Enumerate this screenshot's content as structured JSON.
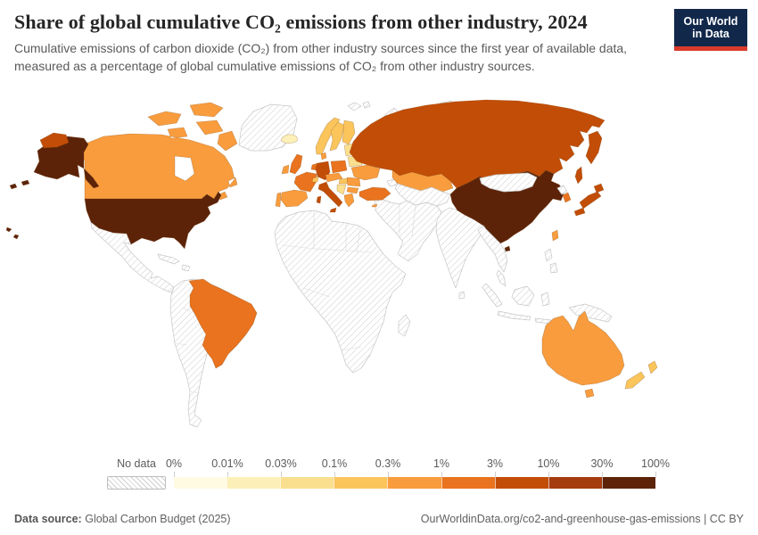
{
  "header": {
    "title": "Share of global cumulative CO₂ emissions from other industry, 2024",
    "subtitle": "Cumulative emissions of carbon dioxide (CO₂) from other industry sources since the first year of available data, measured as a percentage of global cumulative emissions of CO₂ from other industry sources.",
    "logo_line1": "Our World",
    "logo_line2": "in Data",
    "logo_bg": "#12284B",
    "logo_accent": "#D93A2B"
  },
  "legend": {
    "no_data_label": "No data",
    "tick_labels": [
      "0%",
      "0.01%",
      "0.03%",
      "0.1%",
      "0.3%",
      "1%",
      "3%",
      "10%",
      "30%",
      "100%"
    ],
    "bins": [
      {
        "range": "0–0.01%",
        "color": "#FFFBE3"
      },
      {
        "range": "0.01–0.03%",
        "color": "#FCF0B8"
      },
      {
        "range": "0.03–0.1%",
        "color": "#FADF8E"
      },
      {
        "range": "0.1–0.3%",
        "color": "#FBC55C"
      },
      {
        "range": "0.3–1%",
        "color": "#F99C3D"
      },
      {
        "range": "1–3%",
        "color": "#E9731E"
      },
      {
        "range": "3–10%",
        "color": "#C24D06"
      },
      {
        "range": "10–30%",
        "color": "#A53C0E"
      },
      {
        "range": "30–100%",
        "color": "#5C2309"
      }
    ]
  },
  "footer": {
    "source_label": "Data source:",
    "source_value": "Global Carbon Budget (2025)",
    "credit": "OurWorldinData.org/co2-and-greenhouse-gas-emissions | CC BY"
  },
  "chart_data": {
    "type": "choropleth_world_map",
    "title": "Share of global cumulative CO₂ emissions from other industry, 2024",
    "year": 2024,
    "unit": "%",
    "scale_type": "log-binned color scale",
    "tick_labels": [
      "0%",
      "0.01%",
      "0.03%",
      "0.1%",
      "0.3%",
      "1%",
      "3%",
      "10%",
      "30%",
      "100%"
    ],
    "countries": [
      {
        "key": "united-states",
        "name": "United States",
        "bin": "30–100%",
        "bin_index": 8
      },
      {
        "key": "china",
        "name": "China",
        "bin": "30–100%",
        "bin_index": 8
      },
      {
        "key": "russia",
        "name": "Russia",
        "bin": "3–10%",
        "bin_index": 6
      },
      {
        "key": "japan",
        "name": "Japan",
        "bin": "3–10%",
        "bin_index": 6
      },
      {
        "key": "germany",
        "name": "Germany",
        "bin": "3–10%",
        "bin_index": 6
      },
      {
        "key": "italy",
        "name": "Italy",
        "bin": "3–10%",
        "bin_index": 6
      },
      {
        "key": "france",
        "name": "France",
        "bin": "1–3%",
        "bin_index": 5
      },
      {
        "key": "united-kingdom",
        "name": "United Kingdom",
        "bin": "1–3%",
        "bin_index": 5
      },
      {
        "key": "poland",
        "name": "Poland",
        "bin": "1–3%",
        "bin_index": 5
      },
      {
        "key": "turkey",
        "name": "Turkey",
        "bin": "1–3%",
        "bin_index": 5
      },
      {
        "key": "south-korea",
        "name": "South Korea",
        "bin": "1–3%",
        "bin_index": 5
      },
      {
        "key": "brazil",
        "name": "Brazil",
        "bin": "1–3%",
        "bin_index": 5
      },
      {
        "key": "benelux",
        "name": "Belgium & Netherlands",
        "bin": "1–3%",
        "bin_index": 5
      },
      {
        "key": "canada",
        "name": "Canada",
        "bin": "0.3–1%",
        "bin_index": 4
      },
      {
        "key": "spain",
        "name": "Spain",
        "bin": "0.3–1%",
        "bin_index": 4
      },
      {
        "key": "portugal",
        "name": "Portugal",
        "bin": "0.3–1%",
        "bin_index": 4
      },
      {
        "key": "ireland",
        "name": "Ireland",
        "bin": "0.3–1%",
        "bin_index": 4
      },
      {
        "key": "ukraine",
        "name": "Ukraine",
        "bin": "0.3–1%",
        "bin_index": 4
      },
      {
        "key": "kazakhstan",
        "name": "Kazakhstan",
        "bin": "0.3–1%",
        "bin_index": 4
      },
      {
        "key": "australia",
        "name": "Australia",
        "bin": "0.3–1%",
        "bin_index": 4
      },
      {
        "key": "taiwan",
        "name": "Taiwan",
        "bin": "0.3–1%",
        "bin_index": 4
      },
      {
        "key": "romania",
        "name": "Romania",
        "bin": "0.3–1%",
        "bin_index": 4
      },
      {
        "key": "bulgaria",
        "name": "Bulgaria",
        "bin": "0.3–1%",
        "bin_index": 4
      },
      {
        "key": "greece",
        "name": "Greece",
        "bin": "0.3–1%",
        "bin_index": 4
      },
      {
        "key": "denmark",
        "name": "Denmark",
        "bin": "0.3–1%",
        "bin_index": 4
      },
      {
        "key": "austria-czechia",
        "name": "Austria & Czechia",
        "bin": "0.3–1%",
        "bin_index": 4
      },
      {
        "key": "cyprus",
        "name": "Cyprus",
        "bin": "0.3–1%",
        "bin_index": 4
      },
      {
        "key": "norway",
        "name": "Norway",
        "bin": "0.1–0.3%",
        "bin_index": 3
      },
      {
        "key": "sweden",
        "name": "Sweden",
        "bin": "0.1–0.3%",
        "bin_index": 3
      },
      {
        "key": "finland",
        "name": "Finland",
        "bin": "0.1–0.3%",
        "bin_index": 3
      },
      {
        "key": "switzerland",
        "name": "Switzerland",
        "bin": "0.1–0.3%",
        "bin_index": 3
      },
      {
        "key": "hungary",
        "name": "Hungary",
        "bin": "0.1–0.3%",
        "bin_index": 3
      },
      {
        "key": "new-zealand",
        "name": "New Zealand",
        "bin": "0.1–0.3%",
        "bin_index": 3
      },
      {
        "key": "baltic-states",
        "name": "Baltic states",
        "bin": "0.03–0.1%",
        "bin_index": 2
      },
      {
        "key": "belarus",
        "name": "Belarus",
        "bin": "0.03–0.1%",
        "bin_index": 2
      },
      {
        "key": "balkans",
        "name": "Western Balkans",
        "bin": "0.03–0.1%",
        "bin_index": 2
      },
      {
        "key": "iceland",
        "name": "Iceland",
        "bin": "0.01–0.03%",
        "bin_index": 1
      }
    ],
    "no_data_regions": [
      "Greenland",
      "Mexico & Central America",
      "Caribbean",
      "South America (except Brazil)",
      "Africa",
      "Madagascar",
      "Middle East",
      "Caucasus",
      "Central Asia",
      "India & South Asia",
      "Sri Lanka",
      "Mongolia",
      "North Korea",
      "Southeast Asia",
      "Indonesia",
      "Philippines",
      "New Guinea",
      "Svalbard",
      "Novaya Zemlya",
      "Arctic islands"
    ]
  }
}
